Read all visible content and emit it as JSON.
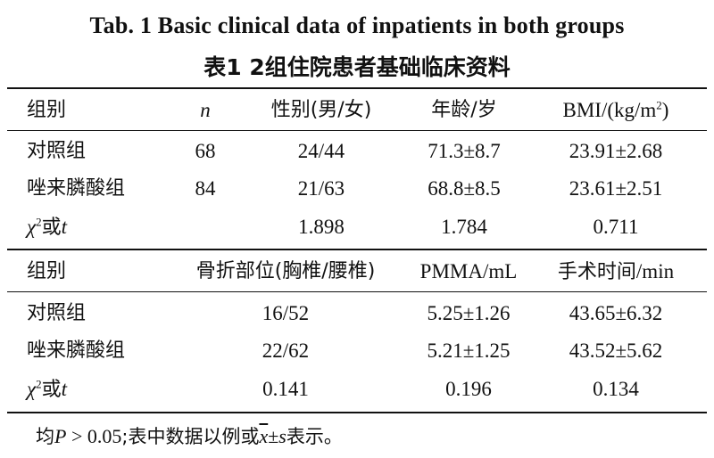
{
  "title_en": "Tab. 1    Basic clinical data of inpatients in both groups",
  "title_cn": "表1    2组住院患者基础临床资料",
  "table1": {
    "headers": {
      "group": "组别",
      "n": "n",
      "sex": "性别(男/女)",
      "age": "年龄/岁",
      "bmi_prefix": "BMI/(kg/m",
      "bmi_sup": "2",
      "bmi_suffix": ")"
    },
    "rows": [
      {
        "group": "对照组",
        "n": "68",
        "sex": "24/44",
        "age": "71.3±8.7",
        "bmi": "23.91±2.68"
      },
      {
        "group": "唑来膦酸组",
        "n": "84",
        "sex": "21/63",
        "age": "68.8±8.5",
        "bmi": "23.61±2.51"
      }
    ],
    "stat": {
      "chi": "χ",
      "sup": "2",
      "or": "或",
      "t": "t",
      "sex": "1.898",
      "age": "1.784",
      "bmi": "0.711"
    }
  },
  "table2": {
    "headers": {
      "group": "组别",
      "fracture": "骨折部位(胸椎/腰椎)",
      "pmma": "PMMA/mL",
      "op_time": "手术时间/min"
    },
    "rows": [
      {
        "group": "对照组",
        "fracture": "16/52",
        "pmma": "5.25±1.26",
        "op_time": "43.65±6.32"
      },
      {
        "group": "唑来膦酸组",
        "fracture": "22/62",
        "pmma": "5.21±1.25",
        "op_time": "43.52±5.62"
      }
    ],
    "stat": {
      "chi": "χ",
      "sup": "2",
      "or": "或",
      "t": "t",
      "fracture": "0.141",
      "pmma": "0.196",
      "op_time": "0.134"
    }
  },
  "footnote": {
    "p1": "均",
    "p2": "P",
    "p3": " > 0.05",
    "p4": ";表中数据以例或",
    "xbar": "x",
    "pm": "±",
    "s": "s",
    "p5": "表示。"
  }
}
